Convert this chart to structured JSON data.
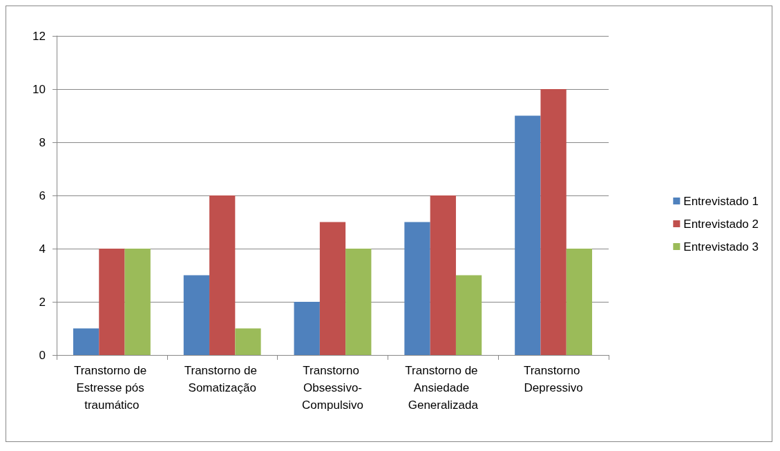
{
  "chart_data": {
    "type": "bar",
    "categories": [
      "Transtorno de Estresse pós traumático",
      "Transtorno de Somatização",
      "Transtorno Obsessivo-Compulsivo",
      "Transtorno de Ansiedade Generalizada",
      "Transtorno Depressivo"
    ],
    "series": [
      {
        "name": "Entrevistado 1",
        "color": "#4f81bd",
        "values": [
          1,
          3,
          2,
          5,
          9
        ]
      },
      {
        "name": "Entrevistado 2",
        "color": "#c0504d",
        "values": [
          4,
          6,
          5,
          6,
          10
        ]
      },
      {
        "name": "Entrevistado 3",
        "color": "#9bbb59",
        "values": [
          4,
          1,
          4,
          3,
          4
        ]
      }
    ],
    "ylim": [
      0,
      12
    ],
    "yticks": [
      0,
      2,
      4,
      6,
      8,
      10,
      12
    ],
    "grid": "y",
    "legend": "right"
  }
}
